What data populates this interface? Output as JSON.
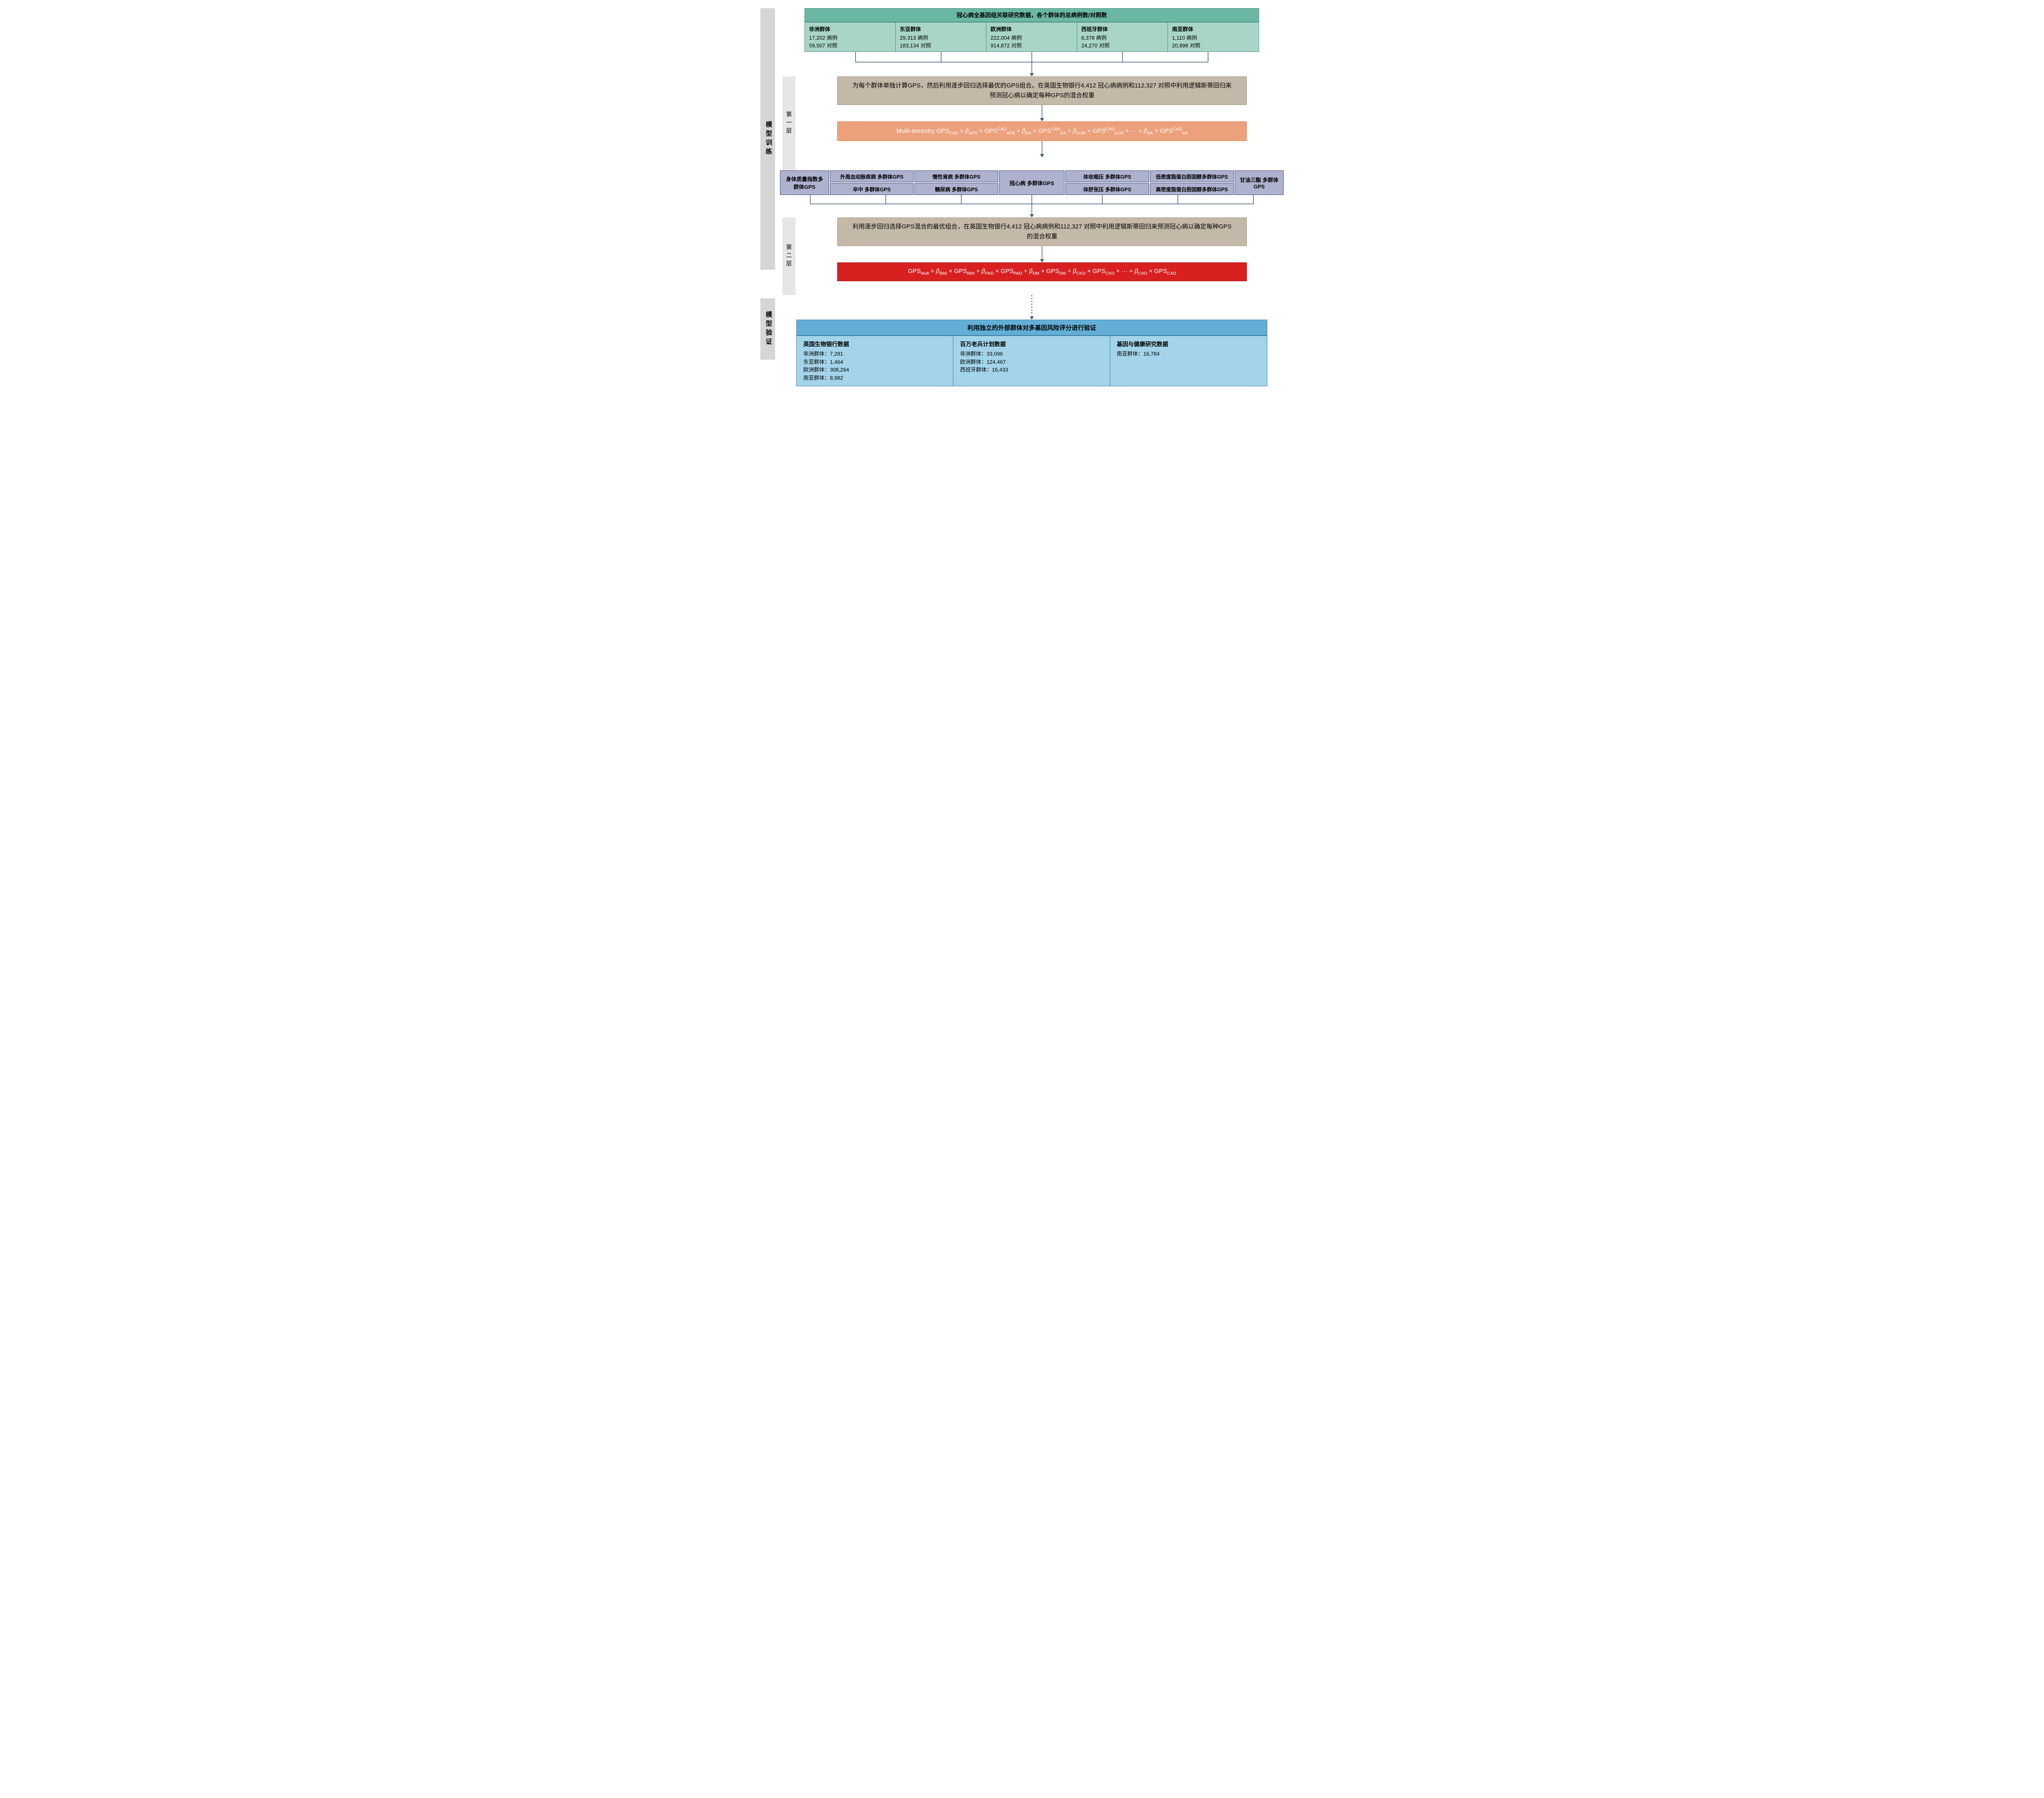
{
  "side": {
    "train": "模型训练",
    "valid": "模型验证"
  },
  "layer": {
    "one": "第一层",
    "two": "第二层"
  },
  "header": {
    "title": "冠心病全基因组关联研究数据，各个群体的总病例数/对照数"
  },
  "pops": [
    {
      "name": "非洲群体",
      "cases": "17,202 病例",
      "ctrl": "59,507 对照"
    },
    {
      "name": "东亚群体",
      "cases": "29,313 病例",
      "ctrl": "183,134 对照"
    },
    {
      "name": "欧洲群体",
      "cases": "222,004 病例",
      "ctrl": "914,872 对照"
    },
    {
      "name": "西班牙群体",
      "cases": "6,378 病例",
      "ctrl": "24,270 对照"
    },
    {
      "name": "南亚群体",
      "cases": "1,110 病例",
      "ctrl": "20,898 对照"
    }
  ],
  "desc1": "为每个群体单独计算GPS，然后利用逐步回归选择最优的GPS组合。在英国生物银行4,412 冠心病病例和112,327 对照中利用逻辑斯蒂回归来预测冠心病以确定每种GPS的混合权重",
  "formula1": {
    "prefix": "Multi-ancestry GPS",
    "sub_prefix": "CAD",
    "terms": [
      {
        "b": "AFR",
        "sup": "CAD",
        "sub": "AFR"
      },
      {
        "b": "EA",
        "sup": "CAD",
        "sub": "EA"
      },
      {
        "b": "EUR",
        "sup": "CAD",
        "sub": "EUR"
      }
    ],
    "final": {
      "b": "SA",
      "sup": "CAD",
      "sub": "SA"
    }
  },
  "traits": {
    "left_end": {
      "t": "身体质量指数多群体GPS"
    },
    "col1": [
      "外周血动脉疾病 多群体GPS",
      "卒中 多群体GPS"
    ],
    "col2": [
      "慢性肾病 多群体GPS",
      "糖尿病 多群体GPS"
    ],
    "center": "冠心病 多群体GPS",
    "col3": [
      "体收缩压 多群体GPS",
      "体舒张压 多群体GPS"
    ],
    "col4": [
      "低密度脂蛋白胆固醇多群体GPS",
      "高密度脂蛋白胆固醇多群体GPS"
    ],
    "right_end": {
      "t": "甘油三酯 多群体GPS"
    }
  },
  "desc2": "利用逐步回归选择GPS混合的最优组合，在英国生物银行4,412 冠心病病例和112,327 对照中利用逻辑斯蒂回归来预测冠心病以确定每种GPS的混合权重",
  "formula2": {
    "prefix": "GPS",
    "sub_prefix": "Mult",
    "terms": [
      {
        "b": "BMI",
        "sub": "BMI"
      },
      {
        "b": "PAD",
        "sub": "PAD"
      },
      {
        "b": "DM",
        "sub": "DM"
      },
      {
        "b": "CKD",
        "sub": "CKD"
      }
    ],
    "final": {
      "b": "CAD",
      "sub": "CAD"
    }
  },
  "validation": {
    "title": "利用独立的外部群体对多基因风险评分进行验证",
    "cells": [
      {
        "title": "英国生物银行数据",
        "lines": [
          "非洲群体：7,281",
          "东亚群体：1,464",
          "欧洲群体：308,264",
          "南亚群体：8,982"
        ]
      },
      {
        "title": "百万老兵计划数据",
        "lines": [
          "非洲群体：33,096",
          "欧洲群体：124,467",
          "西班牙群体：16,433"
        ]
      },
      {
        "title": "基因与健康研究数据",
        "lines": [
          "南亚群体：16,784"
        ]
      }
    ]
  },
  "colors": {
    "green_h": "#6bb7a5",
    "green_b": "#a8d5c7",
    "tan": "#c4b9a8",
    "orange": "#eca17c",
    "red": "#d82020",
    "purple": "#aeb2cf",
    "blue_h": "#63aed6",
    "blue_b": "#a3d4ea",
    "gray_side": "#d6d6d6",
    "gray_layer": "#e6e6e6",
    "line": "#3a5b7a"
  }
}
